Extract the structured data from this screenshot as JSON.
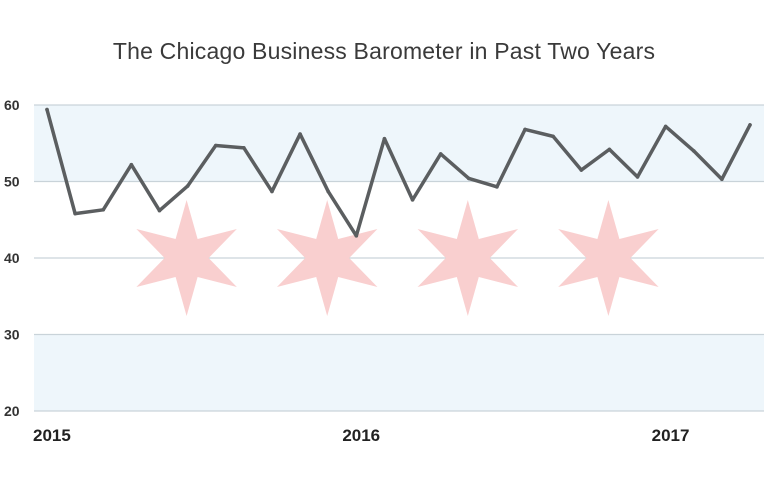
{
  "chart_data": {
    "type": "line",
    "title": "The Chicago Business Barometer in Past Two Years",
    "xlabel": "",
    "ylabel": "",
    "ylim": [
      20,
      60
    ],
    "yticks": [
      20,
      30,
      40,
      50,
      60
    ],
    "xticks": [
      {
        "label": "2015",
        "index": 0
      },
      {
        "label": "2016",
        "index": 11
      },
      {
        "label": "2017",
        "index": 22
      }
    ],
    "grid": true,
    "legend": "none",
    "bands": [
      {
        "from": 50,
        "to": 60,
        "color": "#eef6fb"
      },
      {
        "from": 20,
        "to": 30,
        "color": "#eef6fb"
      }
    ],
    "decorations": "chicago-flag-stars",
    "stars": [
      {
        "index": 5,
        "value": 40
      },
      {
        "index": 10,
        "value": 40
      },
      {
        "index": 15,
        "value": 40
      },
      {
        "index": 20,
        "value": 40
      }
    ],
    "colors": {
      "line": "#5b5e60",
      "grid": "#c9d3d9",
      "star": "#f9cfcf"
    },
    "series": [
      {
        "values": [
          59.4,
          45.8,
          46.3,
          52.2,
          46.2,
          49.4,
          54.7,
          54.4,
          48.7,
          56.2,
          48.7,
          42.9,
          55.6,
          47.6,
          53.6,
          50.4,
          49.3,
          56.8,
          55.9,
          51.5,
          54.2,
          50.6,
          57.2,
          54.0,
          50.3,
          57.4
        ]
      }
    ]
  }
}
